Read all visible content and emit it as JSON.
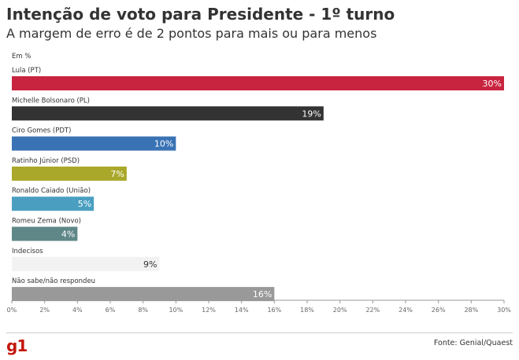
{
  "title": "Intenção de voto para Presidente - 1º turno",
  "subtitle": "A margem de erro é de 2 pontos para mais ou para menos",
  "unit_label": "Em %",
  "logo": "g1",
  "source": "Fonte: Genial/Quaest",
  "chart_data": {
    "type": "bar",
    "orientation": "horizontal",
    "categories": [
      "Lula (PT)",
      "Michelle Bolsonaro (PL)",
      "Ciro Gomes (PDT)",
      "Ratinho Júnior (PSD)",
      "Ronaldo Caiado (União)",
      "Romeu Zema (Novo)",
      "Indecisos",
      "Não sabe/não respondeu"
    ],
    "values": [
      30,
      19,
      10,
      7,
      5,
      4,
      9,
      16
    ],
    "value_labels": [
      "30%",
      "19%",
      "10%",
      "7%",
      "5%",
      "4%",
      "9%",
      "16%"
    ],
    "colors": [
      "#c9243f",
      "#333333",
      "#3a73b5",
      "#aaa82a",
      "#4a9fc1",
      "#5f8787",
      "#f2f2f2",
      "#999999"
    ],
    "label_colors": [
      "#ffffff",
      "#ffffff",
      "#ffffff",
      "#ffffff",
      "#ffffff",
      "#ffffff",
      "#333333",
      "#ffffff"
    ],
    "xlim": [
      0,
      30
    ],
    "xticks": [
      0,
      2,
      4,
      6,
      8,
      10,
      12,
      14,
      16,
      18,
      20,
      22,
      24,
      26,
      28,
      30
    ],
    "xtick_labels": [
      "0%",
      "2%",
      "4%",
      "6%",
      "8%",
      "10%",
      "12%",
      "14%",
      "16%",
      "18%",
      "20%",
      "22%",
      "24%",
      "26%",
      "28%",
      "30%"
    ],
    "grid": false
  }
}
